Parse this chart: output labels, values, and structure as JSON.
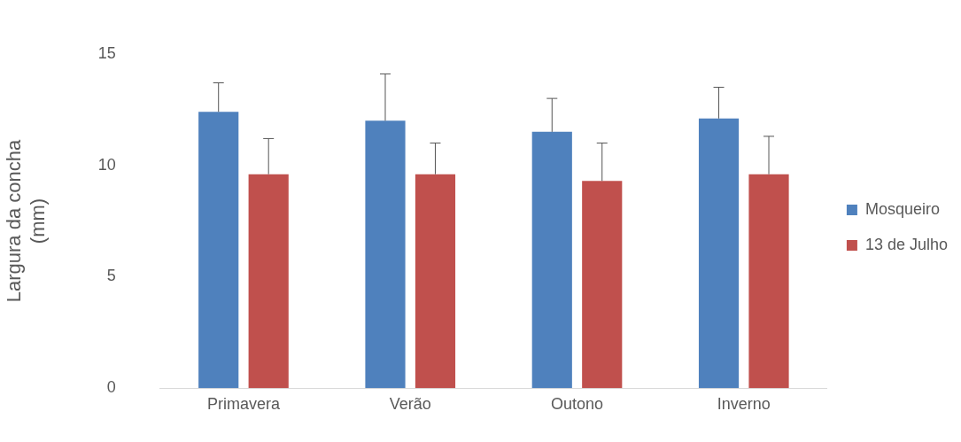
{
  "chart_data": {
    "type": "bar",
    "ylabel": "Largura da concha\n(mm)",
    "categories": [
      "Primavera",
      "Verão",
      "Outono",
      "Inverno"
    ],
    "series": [
      {
        "name": "Mosqueiro",
        "color": "#4f81bd",
        "values": [
          12.4,
          12.0,
          11.5,
          12.1
        ],
        "errors": [
          [
            12.4,
            13.7
          ],
          [
            12.0,
            14.1
          ],
          [
            11.5,
            13.0
          ],
          [
            12.1,
            13.5
          ]
        ]
      },
      {
        "name": "13 de Julho",
        "color": "#c0504d",
        "values": [
          9.6,
          9.6,
          9.3,
          9.6
        ],
        "errors": [
          [
            9.6,
            11.2
          ],
          [
            9.6,
            11.0
          ],
          [
            9.3,
            11.0
          ],
          [
            9.6,
            11.3
          ]
        ]
      }
    ],
    "ylim": [
      0,
      15
    ],
    "yticks": [
      0,
      5,
      10,
      15
    ],
    "grid": false,
    "legend": "right"
  }
}
